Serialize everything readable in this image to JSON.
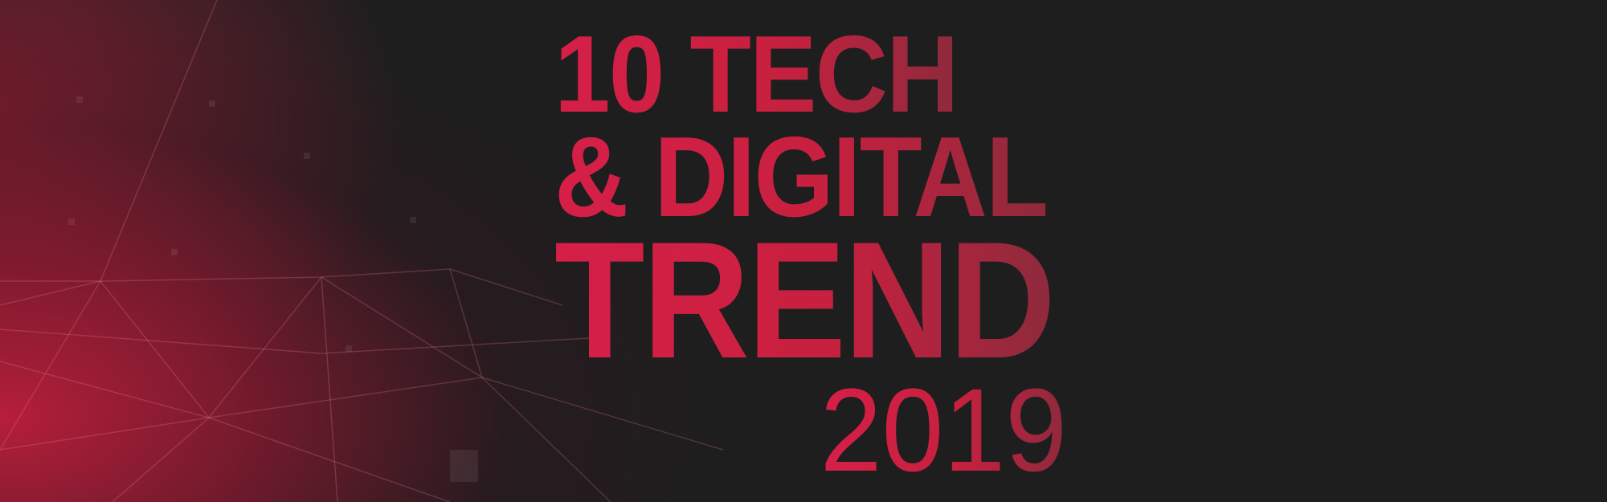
{
  "banner": {
    "line1": "10 TECH",
    "line2": "& DIGITAL",
    "line3": "TREND",
    "year": "2019"
  },
  "colors": {
    "background": "#1e1e1f",
    "accent": "#d61f47"
  }
}
